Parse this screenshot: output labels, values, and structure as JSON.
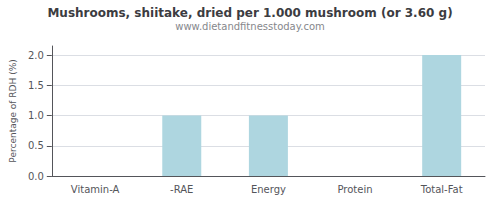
{
  "chart_data": {
    "type": "bar",
    "title": "Mushrooms, shiitake, dried per 1.000 mushroom (or 3.60 g)",
    "subtitle": "www.dietandfitnesstoday.com",
    "categories": [
      "Vitamin-A",
      "-RAE",
      "Energy",
      "Protein",
      "Total-Fat"
    ],
    "values": [
      0.0,
      1.0,
      1.0,
      0.0,
      2.0
    ],
    "color": "#aed6e0",
    "ylabel": "Percentage of RDH (%)",
    "ylim": [
      0,
      2.15
    ],
    "yticks": [
      {
        "value": 0,
        "label": "0.0"
      },
      0.5,
      {
        "value": 1,
        "label": "1.0"
      },
      1.5,
      {
        "value": 2,
        "label": "2.0"
      }
    ],
    "grid": true
  }
}
